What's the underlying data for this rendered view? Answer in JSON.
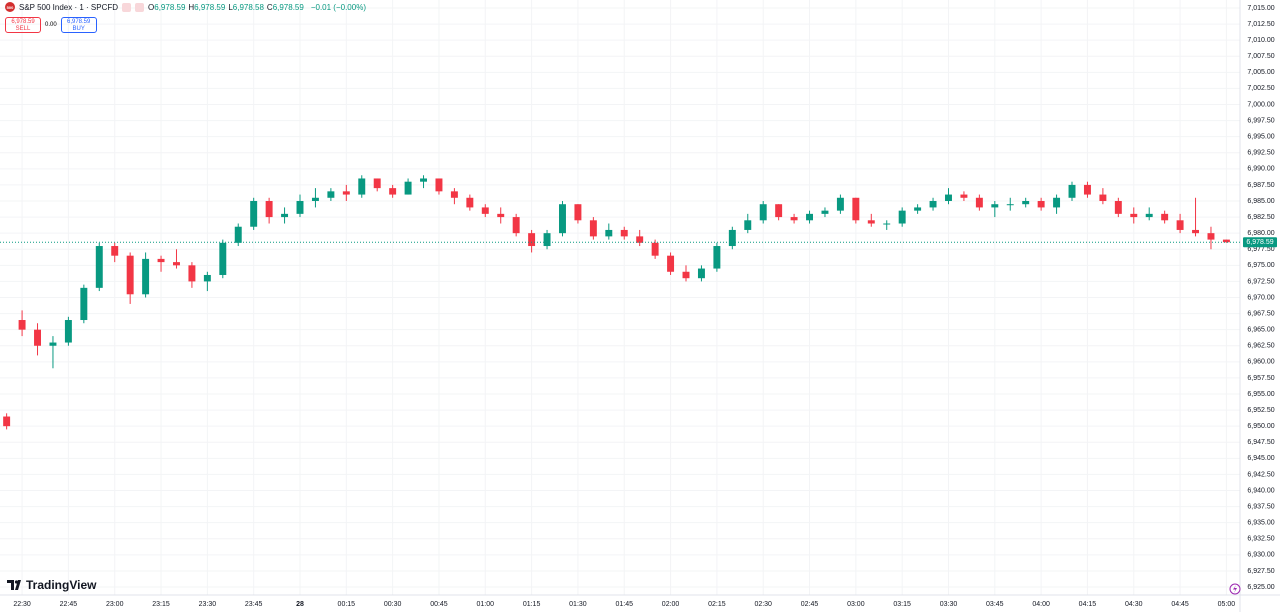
{
  "header": {
    "icon_text": "500",
    "symbol": "S&P 500 Index · 1 · SPCFD",
    "ohlc": [
      {
        "key": "O",
        "value": "6,978.59"
      },
      {
        "key": "H",
        "value": "6,978.59"
      },
      {
        "key": "L",
        "value": "6,978.58"
      },
      {
        "key": "C",
        "value": "6,978.59"
      }
    ],
    "change": "−0.01 (−0.00%)",
    "sell_price": "6,978.59",
    "sell_label": "SELL",
    "spread": "0.00",
    "buy_price": "6,978.59",
    "buy_label": "BUY"
  },
  "logo": "TradingView",
  "chart_data": {
    "type": "candlestick",
    "up_color": "#089981",
    "down_color": "#f23645",
    "grid": true,
    "open": [
      6951.5,
      6966.5,
      6965,
      6962.5,
      6963,
      6966.5,
      6971.5,
      6978,
      6976.5,
      6970.5,
      6976,
      6975.5,
      6975,
      6972.5,
      6973.5,
      6978.5,
      6981,
      6985,
      6982.5,
      6983,
      6985,
      6985.5,
      6986.5,
      6986,
      6988.5,
      6987,
      6986,
      6988,
      6988.5,
      6986.5,
      6985.5,
      6984,
      6983,
      6982.5,
      6980,
      6978,
      6980,
      6984.5,
      6982,
      6979.5,
      6980.5,
      6979.5,
      6978.5,
      6976.5,
      6974,
      6973,
      6974.5,
      6978,
      6980.5,
      6982,
      6984.5,
      6982.5,
      6982,
      6983,
      6983.5,
      6985.5,
      6982,
      6981.5,
      6981.5,
      6983.5,
      6984,
      6985,
      6986,
      6985.5,
      6984,
      6984.5,
      6984.5,
      6985,
      6984,
      6985.5,
      6987.5,
      6986,
      6985,
      6983,
      6982.5,
      6983,
      6982,
      6980.5,
      6980,
      6979
    ],
    "high": [
      6952,
      6968,
      6966,
      6964,
      6967,
      6972,
      6978.5,
      6978.5,
      6977,
      6977,
      6976.5,
      6977.5,
      6975.5,
      6974,
      6979,
      6981.5,
      6985.5,
      6985.5,
      6984,
      6986,
      6987,
      6987,
      6987.5,
      6989,
      6988.5,
      6987.5,
      6988.5,
      6989,
      6988.5,
      6987,
      6986,
      6984.5,
      6984,
      6983,
      6980.5,
      6980.5,
      6985,
      6984.5,
      6982.5,
      6981.5,
      6981,
      6980.5,
      6979,
      6977,
      6975,
      6975,
      6978.5,
      6981,
      6983,
      6985,
      6984.5,
      6983,
      6983.5,
      6984,
      6986,
      6985.5,
      6983,
      6982,
      6984,
      6984.5,
      6985.5,
      6987,
      6986.5,
      6986,
      6985,
      6985.5,
      6985.5,
      6985.5,
      6986,
      6988,
      6988,
      6987,
      6985.5,
      6984,
      6984,
      6983.5,
      6983,
      6985.5,
      6981,
      6979
    ],
    "low": [
      6949.5,
      6964,
      6961,
      6959,
      6962.5,
      6966,
      6971,
      6975.5,
      6969,
      6970,
      6974,
      6974.5,
      6971.5,
      6971,
      6973,
      6978,
      6980.5,
      6981.5,
      6981.5,
      6982.5,
      6984,
      6985,
      6985,
      6985.5,
      6986.5,
      6985.5,
      6986,
      6987,
      6986,
      6984.5,
      6983.5,
      6982.5,
      6981.5,
      6979.5,
      6977,
      6977.5,
      6979.5,
      6981.5,
      6979,
      6979,
      6979,
      6978,
      6976,
      6973.5,
      6972.5,
      6972.5,
      6974,
      6977.5,
      6980,
      6981.5,
      6982,
      6981.5,
      6981.5,
      6982.5,
      6983,
      6981.5,
      6981,
      6980.5,
      6981,
      6983,
      6983.5,
      6984.5,
      6985,
      6983.5,
      6982.5,
      6983.5,
      6984,
      6983.5,
      6983,
      6985,
      6985.5,
      6984.5,
      6982.5,
      6981.5,
      6982,
      6981.5,
      6980,
      6979.5,
      6977.5,
      6978.5
    ],
    "close": [
      6950,
      6965,
      6962.5,
      6963,
      6966.5,
      6971.5,
      6978,
      6976.5,
      6970.5,
      6976,
      6975.5,
      6975,
      6972.5,
      6973.5,
      6978.5,
      6981,
      6985,
      6982.5,
      6983,
      6985,
      6985.5,
      6986.5,
      6986,
      6988.5,
      6987,
      6986,
      6988,
      6988.5,
      6986.5,
      6985.5,
      6984,
      6983,
      6982.5,
      6980,
      6978,
      6980,
      6984.5,
      6982,
      6979.5,
      6980.5,
      6979.5,
      6978.5,
      6976.5,
      6974,
      6973,
      6974.5,
      6978,
      6980.5,
      6982,
      6984.5,
      6982.5,
      6982,
      6983,
      6983.5,
      6985.5,
      6982,
      6981.5,
      6981.5,
      6983.5,
      6984,
      6985,
      6986,
      6985.5,
      6984,
      6984.5,
      6984.5,
      6985,
      6984,
      6985.5,
      6987.5,
      6986,
      6985,
      6983,
      6982.5,
      6983,
      6982,
      6980.5,
      6980,
      6979,
      6978.59
    ],
    "last_price": {
      "value": 6978.59,
      "label": "6,978.59"
    },
    "xlim": [
      -0.43,
      79.88
    ],
    "xticks": [
      {
        "value": 1,
        "label": "22:30"
      },
      {
        "value": 4,
        "label": "22:45"
      },
      {
        "value": 7,
        "label": "23:00"
      },
      {
        "value": 10,
        "label": "23:15"
      },
      {
        "value": 13,
        "label": "23:30"
      },
      {
        "value": 16,
        "label": "23:45"
      },
      {
        "value": 19,
        "label": "28"
      },
      {
        "value": 22,
        "label": "00:15"
      },
      {
        "value": 25,
        "label": "00:30"
      },
      {
        "value": 28,
        "label": "00:45"
      },
      {
        "value": 31,
        "label": "01:00"
      },
      {
        "value": 34,
        "label": "01:15"
      },
      {
        "value": 37,
        "label": "01:30"
      },
      {
        "value": 40,
        "label": "01:45"
      },
      {
        "value": 43,
        "label": "02:00"
      },
      {
        "value": 46,
        "label": "02:15"
      },
      {
        "value": 49,
        "label": "02:30"
      },
      {
        "value": 52,
        "label": "02:45"
      },
      {
        "value": 55,
        "label": "03:00"
      },
      {
        "value": 58,
        "label": "03:15"
      },
      {
        "value": 61,
        "label": "03:30"
      },
      {
        "value": 64,
        "label": "03:45"
      },
      {
        "value": 67,
        "label": "04:00"
      },
      {
        "value": 70,
        "label": "04:15"
      },
      {
        "value": 73,
        "label": "04:30"
      },
      {
        "value": 76,
        "label": "04:45"
      },
      {
        "value": 79,
        "label": "05:00"
      }
    ],
    "ylim": [
      6923.76,
      7016.24
    ],
    "yticks": [
      {
        "value": 6925,
        "label": "6,925.00"
      },
      {
        "value": 6927.5,
        "label": "6,927.50"
      },
      {
        "value": 6930,
        "label": "6,930.00"
      },
      {
        "value": 6932.5,
        "label": "6,932.50"
      },
      {
        "value": 6935,
        "label": "6,935.00"
      },
      {
        "value": 6937.5,
        "label": "6,937.50"
      },
      {
        "value": 6940,
        "label": "6,940.00"
      },
      {
        "value": 6942.5,
        "label": "6,942.50"
      },
      {
        "value": 6945,
        "label": "6,945.00"
      },
      {
        "value": 6947.5,
        "label": "6,947.50"
      },
      {
        "value": 6950,
        "label": "6,950.00"
      },
      {
        "value": 6952.5,
        "label": "6,952.50"
      },
      {
        "value": 6955,
        "label": "6,955.00"
      },
      {
        "value": 6957.5,
        "label": "6,957.50"
      },
      {
        "value": 6960,
        "label": "6,960.00"
      },
      {
        "value": 6962.5,
        "label": "6,962.50"
      },
      {
        "value": 6965,
        "label": "6,965.00"
      },
      {
        "value": 6967.5,
        "label": "6,967.50"
      },
      {
        "value": 6970,
        "label": "6,970.00"
      },
      {
        "value": 6972.5,
        "label": "6,972.50"
      },
      {
        "value": 6975,
        "label": "6,975.00"
      },
      {
        "value": 6977.5,
        "label": "6,977.50"
      },
      {
        "value": 6980,
        "label": "6,980.00"
      },
      {
        "value": 6982.5,
        "label": "6,982.50"
      },
      {
        "value": 6985,
        "label": "6,985.00"
      },
      {
        "value": 6987.5,
        "label": "6,987.50"
      },
      {
        "value": 6990,
        "label": "6,990.00"
      },
      {
        "value": 6992.5,
        "label": "6,992.50"
      },
      {
        "value": 6995,
        "label": "6,995.00"
      },
      {
        "value": 6997.5,
        "label": "6,997.50"
      },
      {
        "value": 7000,
        "label": "7,000.00"
      },
      {
        "value": 7002.5,
        "label": "7,002.50"
      },
      {
        "value": 7005,
        "label": "7,005.00"
      },
      {
        "value": 7007.5,
        "label": "7,007.50"
      },
      {
        "value": 7010,
        "label": "7,010.00"
      },
      {
        "value": 7012.5,
        "label": "7,012.50"
      },
      {
        "value": 7015,
        "label": "7,015.00"
      }
    ]
  }
}
